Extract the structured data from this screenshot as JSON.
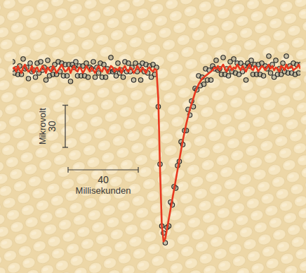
{
  "chart_data": {
    "type": "line",
    "tick_labels": false,
    "xlim": [
      0,
      164
    ],
    "ylim": [
      -130,
      20
    ],
    "scale_bars": {
      "y": {
        "value": 30,
        "label": "Mikrovolt"
      },
      "x": {
        "value": 40,
        "label": "Millisekunden"
      }
    },
    "x": [
      0,
      1,
      2,
      3,
      4,
      5,
      6,
      7,
      8,
      9,
      10,
      11,
      12,
      13,
      14,
      15,
      16,
      17,
      18,
      19,
      20,
      21,
      22,
      23,
      24,
      25,
      26,
      27,
      28,
      29,
      30,
      31,
      32,
      33,
      34,
      35,
      36,
      37,
      38,
      39,
      40,
      41,
      42,
      43,
      44,
      45,
      46,
      47,
      48,
      49,
      50,
      51,
      52,
      53,
      54,
      55,
      56,
      57,
      58,
      59,
      60,
      61,
      62,
      63,
      64,
      65,
      66,
      67,
      68,
      69,
      70,
      71,
      72,
      73,
      74,
      75,
      76,
      77,
      78,
      79,
      80,
      81,
      82,
      83,
      84,
      85,
      86,
      87,
      88,
      89,
      90,
      91,
      92,
      93,
      94,
      95,
      96,
      97,
      98,
      99,
      100,
      101,
      102,
      103,
      104,
      105,
      106,
      107,
      108,
      109,
      110,
      111,
      112,
      113,
      114,
      115,
      116,
      117,
      118,
      119,
      120,
      121,
      122,
      123,
      124,
      125,
      126,
      127,
      128,
      129,
      130,
      131,
      132,
      133,
      134,
      135,
      136,
      137,
      138,
      139,
      140,
      141,
      142,
      143,
      144,
      145,
      146,
      147,
      148,
      149,
      150,
      151,
      152,
      153,
      154,
      155,
      156,
      157,
      158,
      159,
      160,
      161,
      162,
      163,
      164
    ],
    "series": [
      {
        "type": "scatter",
        "color": "#222222",
        "marker": "circle",
        "values": [
          6,
          -2,
          1,
          -3,
          3,
          -3,
          8,
          1,
          2,
          -6,
          5,
          -1,
          0,
          -5,
          5,
          -2,
          6,
          0,
          2,
          -7,
          7,
          -4,
          1,
          -3,
          4,
          -3,
          6,
          -1,
          5,
          -4,
          4,
          -4,
          4,
          -8,
          4,
          2,
          6,
          -4,
          3,
          -4,
          3,
          -4,
          5,
          -5,
          2,
          1,
          6,
          -5,
          2,
          -2,
          5,
          -5,
          4,
          -5,
          1,
          -1,
          9,
          -1,
          0,
          -4,
          5,
          -2,
          0,
          -5,
          6,
          -1,
          5,
          -1,
          2,
          -7,
          5,
          -1,
          3,
          -7,
          5,
          -1,
          4,
          -2,
          3,
          -5,
          4,
          -3,
          2,
          -26,
          -67,
          -111,
          -116,
          -123,
          -112,
          -111,
          -94,
          -96,
          -83,
          -84,
          -68,
          -65,
          -51,
          -53,
          -43,
          -43,
          -28,
          -32,
          -22,
          -26,
          -13,
          -14,
          -4,
          -11,
          -5,
          -10,
          1,
          -7,
          0,
          -7,
          3,
          1,
          7,
          0,
          1,
          -3,
          9,
          -3,
          1,
          -4,
          6,
          -1,
          8,
          -2,
          5,
          -3,
          5,
          -1,
          3,
          -7,
          5,
          3,
          7,
          -3,
          4,
          -3,
          4,
          -3,
          5,
          -4,
          3,
          1,
          10,
          -2,
          4,
          -5,
          7,
          -3,
          1,
          -3,
          5,
          -1,
          10,
          -2,
          3,
          -2,
          5,
          -3,
          4,
          -2,
          4
        ]
      },
      {
        "type": "line",
        "color": "#e8391f",
        "line_style": "solid",
        "values": [
          1,
          2,
          -1,
          3,
          0,
          -2,
          2,
          4,
          1,
          -1,
          0,
          3,
          -2,
          1,
          2,
          -1,
          0,
          3,
          1,
          -2,
          2,
          0,
          -1,
          3,
          1,
          -2,
          0,
          2,
          4,
          1,
          -1,
          0,
          2,
          -2,
          1,
          3,
          0,
          -1,
          2,
          1,
          -2,
          0,
          3,
          1,
          -1,
          2,
          0,
          -2,
          1,
          3,
          0,
          -1,
          2,
          1,
          -2,
          0,
          3,
          2,
          -1,
          1,
          0,
          2,
          -2,
          1,
          3,
          0,
          -1,
          2,
          1,
          -2,
          0,
          3,
          1,
          -1,
          2,
          0,
          -2,
          1,
          2,
          0,
          -1,
          1,
          0,
          -20,
          -70,
          -110,
          -122,
          -120,
          -113,
          -106,
          -99,
          -92,
          -85,
          -78,
          -71,
          -64,
          -57,
          -50,
          -44,
          -38,
          -33,
          -28,
          -24,
          -20,
          -16,
          -13,
          -10,
          -8,
          -6,
          -5,
          -4,
          -3,
          -2,
          -1,
          0,
          2,
          1,
          3,
          0,
          2,
          4,
          1,
          -1,
          2,
          3,
          0,
          2,
          1,
          4,
          2,
          0,
          3,
          1,
          -1,
          2,
          4,
          1,
          0,
          3,
          2,
          -1,
          1,
          3,
          2,
          0,
          2,
          4,
          1,
          3,
          0,
          2,
          1,
          -1,
          3,
          2,
          0,
          4,
          1,
          2,
          3,
          0,
          1,
          2,
          4,
          1
        ]
      }
    ]
  }
}
